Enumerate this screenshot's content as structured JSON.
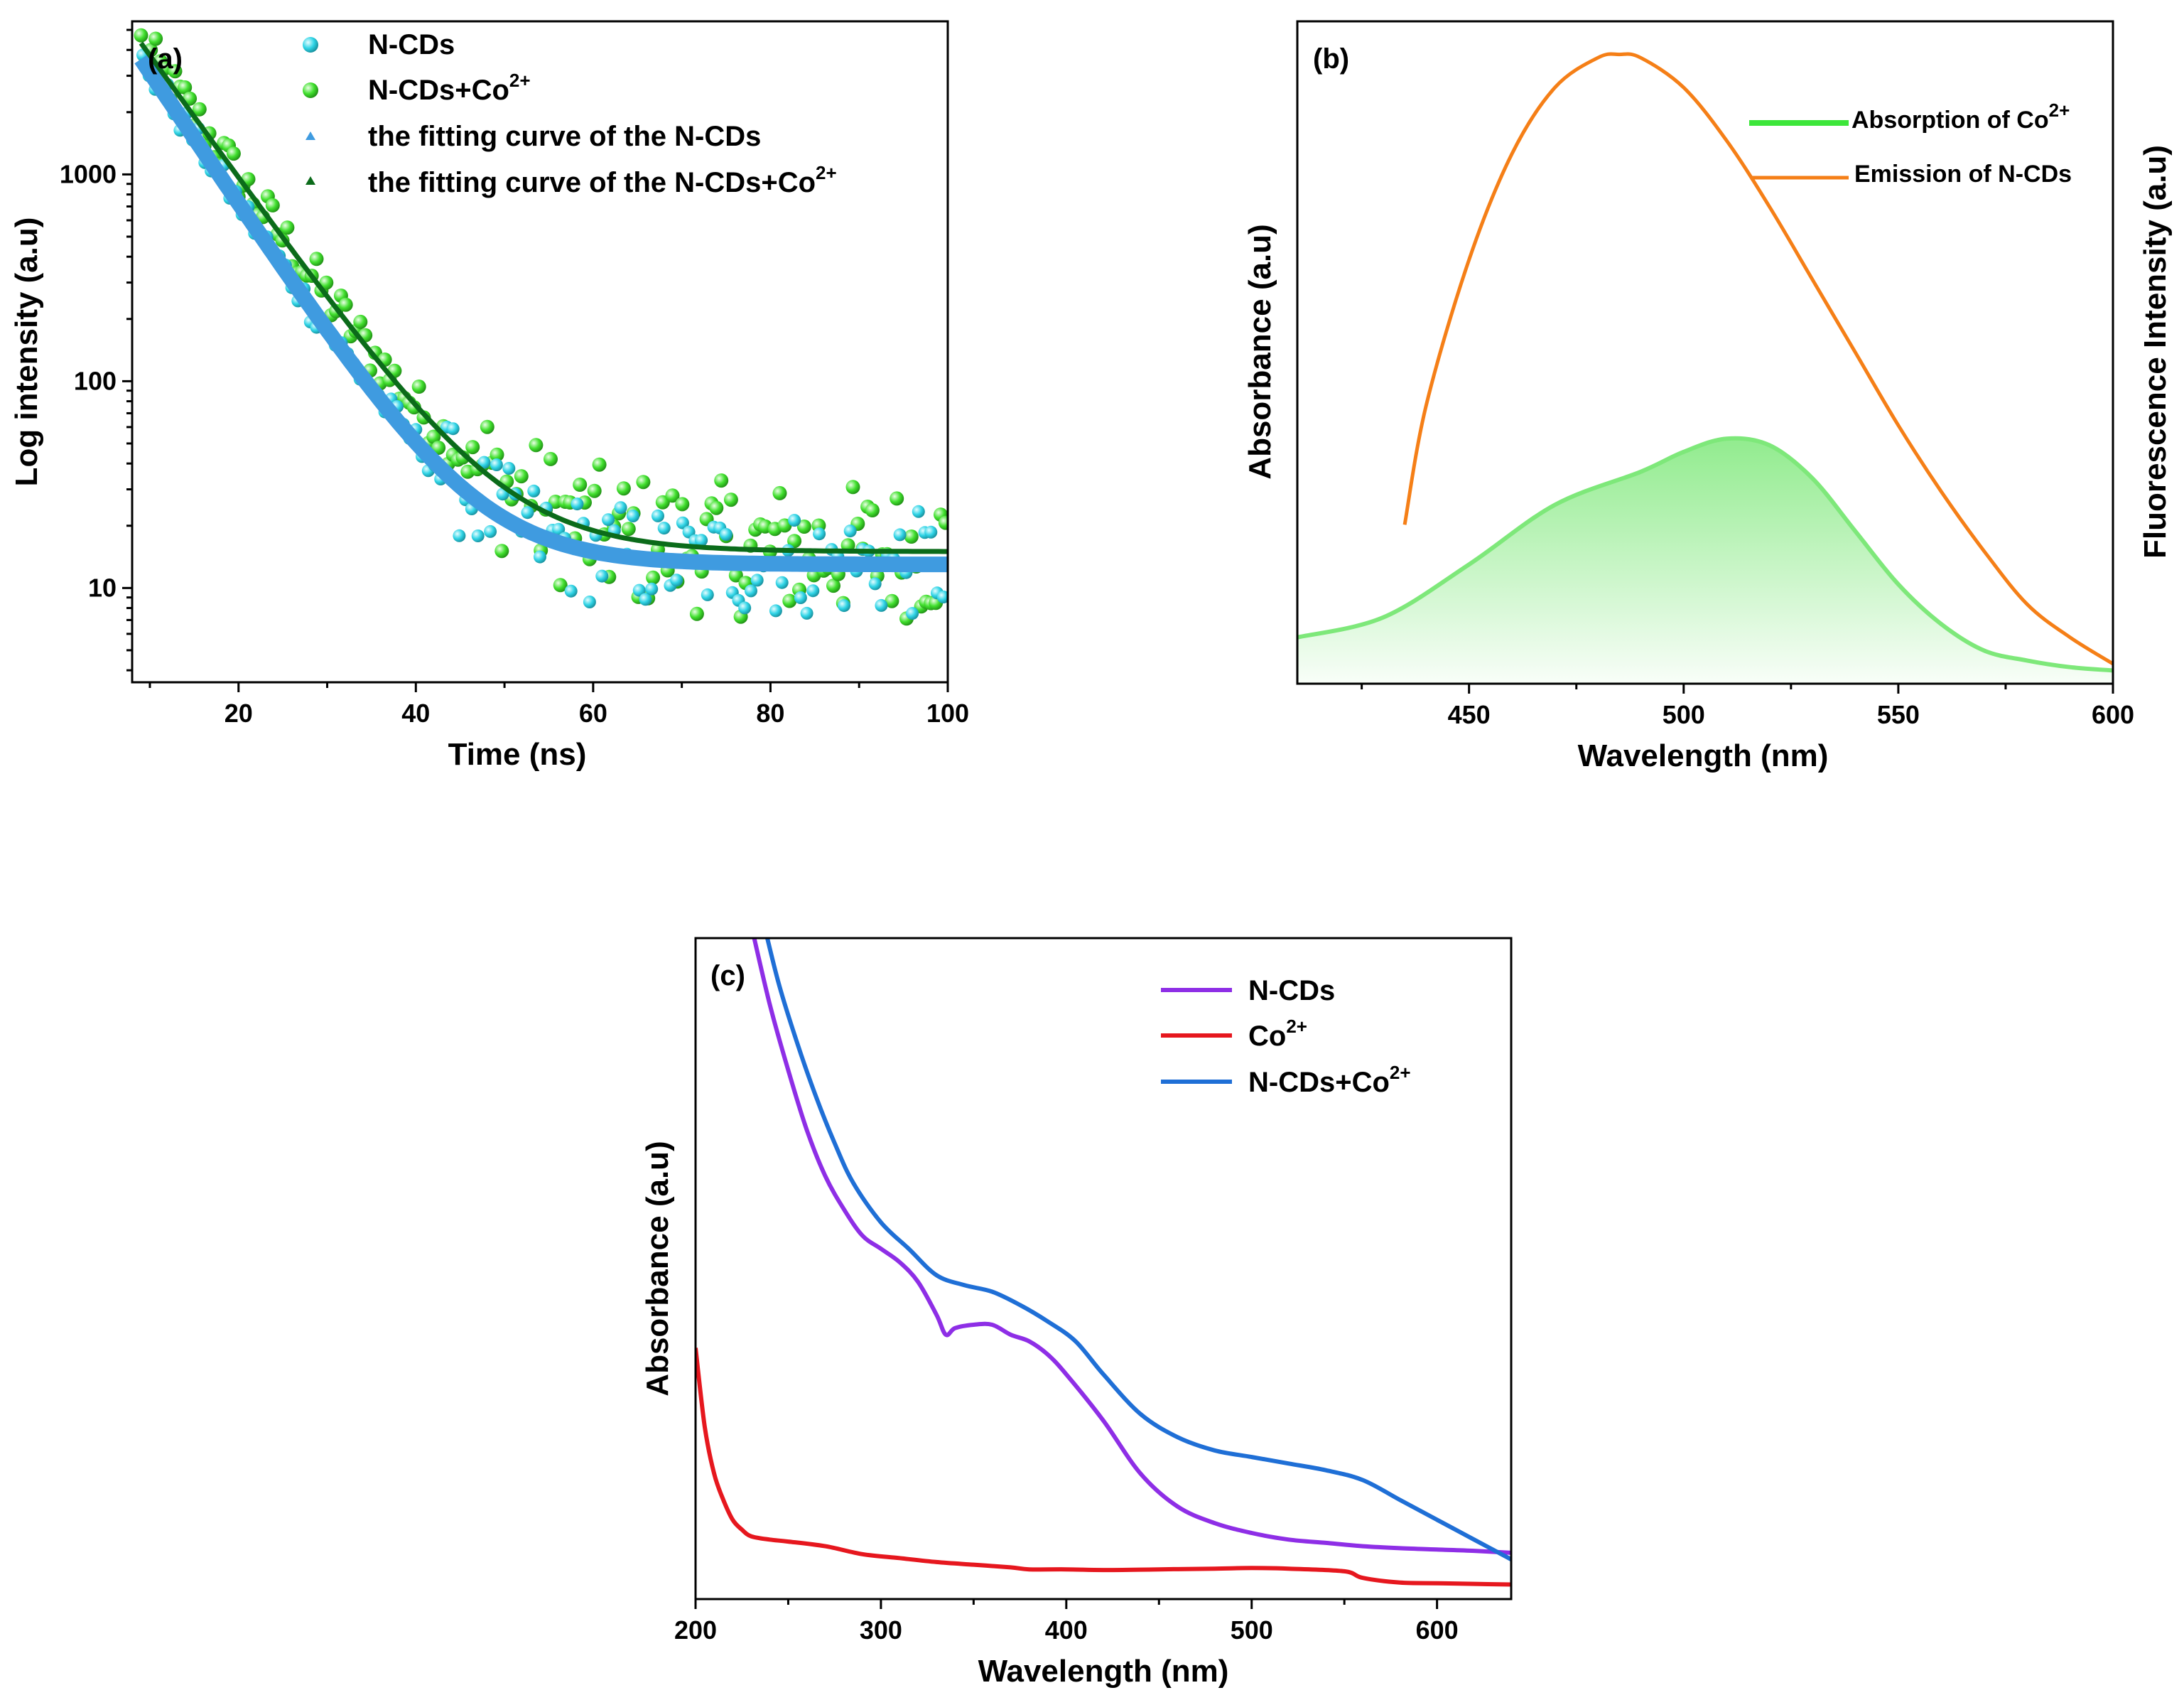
{
  "chart_data": [
    {
      "panel": "(a)",
      "type": "scatter",
      "xlabel": "Time (ns)",
      "ylabel": "Log intensity (a.u)",
      "xlim": [
        8,
        100
      ],
      "ylim": [
        3.5,
        5500
      ],
      "yscale": "log",
      "x_ticks": [
        "20",
        "40",
        "60",
        "80",
        "100"
      ],
      "y_ticks": [
        "10",
        "100",
        "1000"
      ],
      "legend": [
        {
          "text": "N-CDs",
          "sup": "",
          "marker": "sphere",
          "color": "#2fd4e6"
        },
        {
          "text": "N-CDs+Co",
          "sup": "2+",
          "marker": "sphere",
          "color": "#41e02e"
        },
        {
          "text": "the fitting curve of the N-CDs",
          "sup": "",
          "marker": "triangle",
          "color": "#3f9be0"
        },
        {
          "text": "the fitting curve of the N-CDs+Co",
          "sup": "2+",
          "marker": "triangle",
          "color": "#0b6b1a"
        }
      ],
      "series": [
        {
          "name": "N-CDs decay",
          "model": "y = 3600*exp(-(t-9)/6.8) + 13",
          "noise_floor": 13,
          "color": "#2fd4e6"
        },
        {
          "name": "N-CDs+Co2+ decay",
          "model": "y = 4300*exp(-(t-9)/7.3) + 15",
          "noise_floor": 15,
          "color": "#41e02e"
        },
        {
          "name": "fit N-CDs",
          "model": "y = 3600*exp(-(t-9)/6.8) + 13",
          "color": "#3f9be0"
        },
        {
          "name": "fit N-CDs+Co2+",
          "model": "y = 4300*exp(-(t-9)/7.3) + 15",
          "color": "#0b6b1a"
        }
      ]
    },
    {
      "panel": "(b)",
      "type": "line",
      "xlabel": "Wavelength (nm)",
      "ylabel": "Absorbance (a.u)",
      "ylabel_right": "Fluorescence Intensity (a.u)",
      "xlim": [
        410,
        600
      ],
      "ylim": [
        0,
        1
      ],
      "x_ticks": [
        "450",
        "500",
        "550",
        "600"
      ],
      "legend": [
        {
          "text": "Absorption of Co",
          "sup": "2+",
          "color": "#3de63a"
        },
        {
          "text": "Emission of N-CDs",
          "sup": "",
          "color": "#f57f17"
        }
      ],
      "series": [
        {
          "name": "Absorption of Co2+",
          "color": "#7ee87a",
          "fill": true,
          "x": [
            410,
            430,
            450,
            470,
            490,
            500,
            510,
            520,
            530,
            540,
            550,
            560,
            570,
            580,
            590,
            600
          ],
          "y": [
            0.07,
            0.1,
            0.18,
            0.27,
            0.32,
            0.35,
            0.37,
            0.36,
            0.31,
            0.23,
            0.15,
            0.09,
            0.05,
            0.035,
            0.025,
            0.02
          ]
        },
        {
          "name": "Emission of N-CDs",
          "color": "#f57f17",
          "x": [
            435,
            440,
            450,
            460,
            470,
            480,
            485,
            490,
            500,
            510,
            520,
            530,
            540,
            550,
            560,
            570,
            580,
            590,
            600
          ],
          "y": [
            0.24,
            0.42,
            0.64,
            0.8,
            0.9,
            0.945,
            0.95,
            0.945,
            0.9,
            0.82,
            0.72,
            0.61,
            0.5,
            0.39,
            0.29,
            0.2,
            0.12,
            0.07,
            0.03
          ]
        }
      ]
    },
    {
      "panel": "(c)",
      "type": "line",
      "xlabel": "Wavelength (nm)",
      "ylabel": "Absorbance (a.u)",
      "xlim": [
        200,
        640
      ],
      "ylim": [
        0,
        1
      ],
      "x_ticks": [
        "200",
        "300",
        "400",
        "500",
        "600"
      ],
      "legend": [
        {
          "text": "N-CDs",
          "sup": "",
          "color": "#8e2ee6"
        },
        {
          "text": "Co",
          "sup": "2+",
          "color": "#e6171e"
        },
        {
          "text": "N-CDs+Co",
          "sup": "2+",
          "color": "#1f6fd6"
        }
      ],
      "series": [
        {
          "name": "N-CDs",
          "color": "#8e2ee6",
          "x": [
            230,
            240,
            250,
            260,
            270,
            280,
            290,
            300,
            310,
            320,
            330,
            335,
            340,
            350,
            360,
            370,
            380,
            390,
            400,
            420,
            440,
            460,
            480,
            500,
            520,
            540,
            560,
            580,
            600,
            620,
            640
          ],
          "y": [
            1.02,
            0.9,
            0.8,
            0.71,
            0.64,
            0.59,
            0.55,
            0.53,
            0.51,
            0.48,
            0.43,
            0.4,
            0.41,
            0.415,
            0.415,
            0.4,
            0.39,
            0.37,
            0.34,
            0.27,
            0.19,
            0.14,
            0.115,
            0.1,
            0.09,
            0.085,
            0.08,
            0.077,
            0.075,
            0.073,
            0.07
          ]
        },
        {
          "name": "Co2+",
          "color": "#e6171e",
          "x": [
            200,
            205,
            210,
            215,
            220,
            225,
            230,
            240,
            250,
            270,
            290,
            310,
            330,
            350,
            370,
            380,
            400,
            420,
            450,
            480,
            500,
            520,
            550,
            560,
            580,
            600,
            620,
            640
          ],
          "y": [
            0.38,
            0.26,
            0.19,
            0.15,
            0.12,
            0.105,
            0.095,
            0.09,
            0.087,
            0.08,
            0.068,
            0.062,
            0.056,
            0.052,
            0.048,
            0.045,
            0.045,
            0.044,
            0.045,
            0.046,
            0.047,
            0.046,
            0.042,
            0.032,
            0.025,
            0.024,
            0.023,
            0.022
          ]
        },
        {
          "name": "N-CDs+Co2+",
          "color": "#1f6fd6",
          "x": [
            237,
            245,
            255,
            265,
            275,
            285,
            300,
            315,
            330,
            345,
            360,
            375,
            390,
            405,
            420,
            440,
            460,
            480,
            500,
            520,
            540,
            560,
            580,
            600,
            620,
            640
          ],
          "y": [
            1.02,
            0.93,
            0.84,
            0.76,
            0.69,
            0.63,
            0.57,
            0.53,
            0.49,
            0.475,
            0.465,
            0.445,
            0.42,
            0.39,
            0.34,
            0.28,
            0.245,
            0.225,
            0.215,
            0.205,
            0.195,
            0.18,
            0.15,
            0.12,
            0.09,
            0.06
          ]
        }
      ]
    }
  ]
}
